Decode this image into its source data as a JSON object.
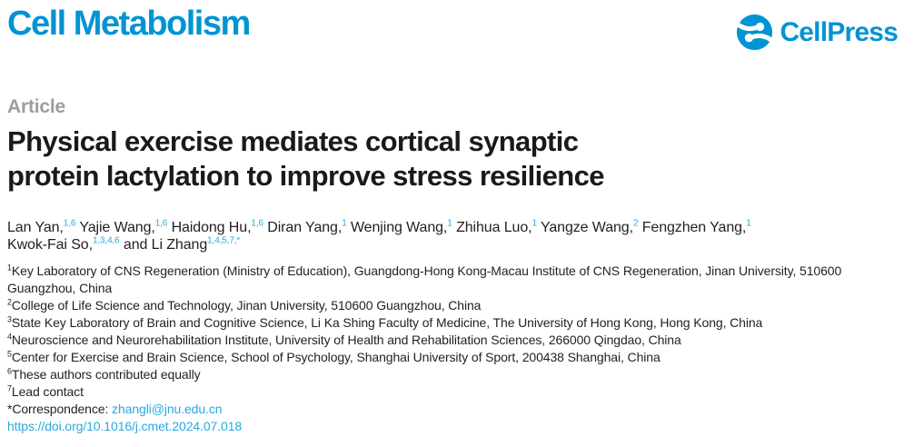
{
  "journal": {
    "name": "Cell Metabolism"
  },
  "publisher": {
    "name": "CellPress"
  },
  "article": {
    "kicker": "Article",
    "title_line1": "Physical exercise mediates cortical synaptic",
    "title_line2": "protein lactylation to improve stress resilience"
  },
  "authors": [
    {
      "text": "Lan Yan,",
      "sup": "1,6"
    },
    {
      "text": "Yajie Wang,",
      "sup": "1,6"
    },
    {
      "text": "Haidong Hu,",
      "sup": "1,6"
    },
    {
      "text": "Diran Yang,",
      "sup": "1"
    },
    {
      "text": "Wenjing Wang,",
      "sup": "1"
    },
    {
      "text": "Zhihua Luo,",
      "sup": "1"
    },
    {
      "text": "Yangze Wang,",
      "sup": "2"
    },
    {
      "text": "Fengzhen Yang,",
      "sup": "1",
      "break_after": true
    },
    {
      "text": "Kwok-Fai So,",
      "sup": "1,3,4,6"
    },
    {
      "text": "and Li Zhang",
      "sup": "1,4,5,7,*"
    }
  ],
  "affiliations": [
    {
      "sup": "1",
      "text": "Key Laboratory of CNS Regeneration (Ministry of Education), Guangdong-Hong Kong-Macau Institute of CNS Regeneration, Jinan University, 510600 Guangzhou, China"
    },
    {
      "sup": "2",
      "text": "College of Life Science and Technology, Jinan University, 510600 Guangzhou, China"
    },
    {
      "sup": "3",
      "text": "State Key Laboratory of Brain and Cognitive Science, Li Ka Shing Faculty of Medicine, The University of Hong Kong, Hong Kong, China"
    },
    {
      "sup": "4",
      "text": "Neuroscience and Neurorehabilitation Institute, University of Health and Rehabilitation Sciences, 266000 Qingdao, China"
    },
    {
      "sup": "5",
      "text": "Center for Exercise and Brain Science, School of Psychology, Shanghai University of Sport, 200438 Shanghai, China"
    },
    {
      "sup": "6",
      "text": "These authors contributed equally"
    },
    {
      "sup": "7",
      "text": "Lead contact"
    }
  ],
  "correspondence": {
    "label": "*Correspondence:",
    "email": "zhangli@jnu.edu.cn"
  },
  "doi": "https://doi.org/10.1016/j.cmet.2024.07.018",
  "colors": {
    "brand": "#0094d4",
    "link": "#2ba8e0",
    "kicker": "#9b9da1",
    "title": "#1a1a1a",
    "body_text": "#231f20"
  }
}
